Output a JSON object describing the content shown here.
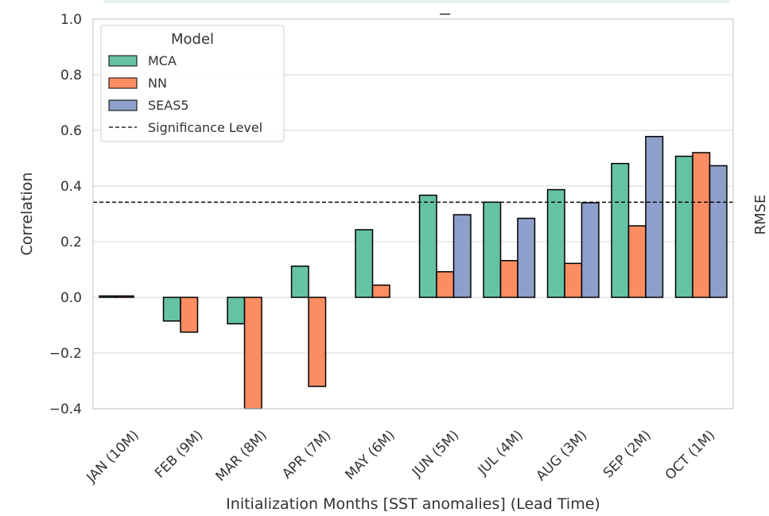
{
  "chart_data": {
    "type": "bar",
    "xlabel": "Initialization Months [SST anomalies] (Lead Time)",
    "ylabel": "Correlation",
    "right_edge_text": "RMSE",
    "ylim": [
      -0.4,
      1.0
    ],
    "yticks": [
      -0.4,
      -0.2,
      0.0,
      0.2,
      0.4,
      0.6,
      0.8,
      1.0
    ],
    "ytick_labels": [
      "−0.4",
      "−0.2",
      "0.0",
      "0.2",
      "0.4",
      "0.6",
      "0.8",
      "1.0"
    ],
    "grid": true,
    "categories": [
      "JAN (10M)",
      "FEB (9M)",
      "MAR (8M)",
      "APR (7M)",
      "MAY (6M)",
      "JUN (5M)",
      "JUL (4M)",
      "AUG (3M)",
      "SEP (2M)",
      "OCT (1M)"
    ],
    "series": [
      {
        "name": "MCA",
        "color": "#66c2a5",
        "values": [
          0.005,
          -0.085,
          -0.095,
          0.112,
          0.243,
          0.367,
          0.342,
          0.387,
          0.481,
          0.507
        ]
      },
      {
        "name": "NN",
        "color": "#fc8d62",
        "values": [
          0.005,
          -0.125,
          -0.4,
          -0.32,
          0.044,
          0.092,
          0.132,
          0.122,
          0.257,
          0.52
        ]
      },
      {
        "name": "SEAS5",
        "color": "#8da0cb",
        "values": [
          null,
          null,
          null,
          null,
          null,
          0.297,
          0.284,
          0.34,
          0.578,
          0.473
        ]
      }
    ],
    "significance_level": 0.342,
    "legend": {
      "title": "Model",
      "placement": "top-left",
      "entries": [
        "MCA",
        "NN",
        "SEAS5"
      ],
      "line_entry": "Significance Level"
    }
  }
}
